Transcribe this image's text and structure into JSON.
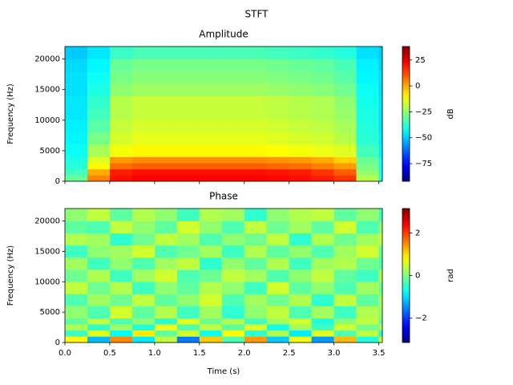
{
  "title": "STFT",
  "chart_data": [
    {
      "type": "heatmap",
      "title": "Amplitude",
      "ylabel": "Frequency (Hz)",
      "colorbar_label": "dB",
      "cmap": "jet",
      "xlim": [
        0,
        3.54
      ],
      "ylim": [
        0,
        22050
      ],
      "sharex": true,
      "yticks": [
        0,
        5000,
        10000,
        15000,
        20000
      ],
      "clim": [
        -92,
        38
      ],
      "cticks": [
        {
          "value": -75,
          "label": "−75"
        },
        {
          "value": -50,
          "label": "−50"
        },
        {
          "value": -25,
          "label": "−25"
        },
        0,
        25
      ],
      "time_bins": [
        0,
        0.25,
        0.5,
        0.75,
        1,
        1.25,
        1.5,
        1.75,
        2,
        2.25,
        2.5,
        2.75,
        3,
        3.25,
        3.5,
        3.54
      ],
      "freq_bins": [
        0,
        1000,
        2000,
        3000,
        4000,
        6000,
        8000,
        10000,
        12000,
        14000,
        16000,
        18000,
        20000,
        22050
      ],
      "z": [
        [
          -30,
          5,
          20,
          22,
          22,
          22,
          22,
          22,
          22,
          21,
          20,
          18,
          15,
          -20,
          -40
        ],
        [
          -35,
          0,
          18,
          20,
          20,
          20,
          20,
          20,
          20,
          19,
          18,
          15,
          10,
          -25,
          -40
        ],
        [
          -38,
          -10,
          8,
          10,
          10,
          10,
          10,
          10,
          10,
          9,
          8,
          6,
          2,
          -28,
          -42
        ],
        [
          -40,
          -15,
          2,
          4,
          4,
          4,
          4,
          4,
          4,
          3,
          2,
          0,
          -5,
          -30,
          -42
        ],
        [
          -42,
          -22,
          -12,
          -10,
          -10,
          -10,
          -10,
          -10,
          -10,
          -11,
          -12,
          -13,
          -15,
          -35,
          -45
        ],
        [
          -44,
          -28,
          -16,
          -14,
          -14,
          -14,
          -14,
          -14,
          -14,
          -15,
          -16,
          -17,
          -20,
          -38,
          -46
        ],
        [
          -45,
          -32,
          -18,
          -16,
          -16,
          -16,
          -16,
          -16,
          -16,
          -17,
          -18,
          -19,
          -22,
          -39,
          -47
        ],
        [
          -46,
          -35,
          -20,
          -18,
          -18,
          -18,
          -18,
          -18,
          -18,
          -19,
          -20,
          -21,
          -24,
          -40,
          -47
        ],
        [
          -46,
          -37,
          -20,
          -18,
          -18,
          -18,
          -18,
          -18,
          -18,
          -19,
          -20,
          -21,
          -25,
          -41,
          -47
        ],
        [
          -47,
          -40,
          -25,
          -23,
          -23,
          -23,
          -23,
          -23,
          -23,
          -24,
          -25,
          -26,
          -29,
          -42,
          -48
        ],
        [
          -47,
          -42,
          -28,
          -26,
          -26,
          -26,
          -26,
          -26,
          -26,
          -27,
          -28,
          -29,
          -32,
          -44,
          -48
        ],
        [
          -48,
          -44,
          -30,
          -28,
          -28,
          -28,
          -28,
          -28,
          -28,
          -29,
          -30,
          -31,
          -34,
          -45,
          -49
        ],
        [
          -50,
          -46,
          -36,
          -34,
          -34,
          -34,
          -34,
          -34,
          -34,
          -35,
          -36,
          -37,
          -39,
          -47,
          -50
        ]
      ]
    },
    {
      "type": "heatmap",
      "title": "Phase",
      "xlabel": "Time (s)",
      "ylabel": "Frequency (Hz)",
      "colorbar_label": "rad",
      "cmap": "jet",
      "xlim": [
        0,
        3.54
      ],
      "ylim": [
        0,
        22050
      ],
      "xticks": [
        {
          "value": 0,
          "label": "0.0"
        },
        {
          "value": 0.5,
          "label": "0.5"
        },
        {
          "value": 1,
          "label": "1.0"
        },
        {
          "value": 1.5,
          "label": "1.5"
        },
        {
          "value": 2,
          "label": "2.0"
        },
        {
          "value": 2.5,
          "label": "2.5"
        },
        {
          "value": 3,
          "label": "3.0"
        },
        {
          "value": 3.5,
          "label": "3.5"
        }
      ],
      "yticks": [
        0,
        5000,
        10000,
        15000,
        20000
      ],
      "clim": [
        -3.14,
        3.14
      ],
      "cticks": [
        {
          "value": -2,
          "label": "−2"
        },
        0,
        {
          "value": 2,
          "label": "2"
        }
      ],
      "time_bins": [
        0,
        0.25,
        0.5,
        0.75,
        1,
        1.25,
        1.5,
        1.75,
        2,
        2.25,
        2.5,
        2.75,
        3,
        3.25,
        3.5,
        3.54
      ],
      "freq_bins": [
        0,
        1000,
        2000,
        3000,
        4000,
        6000,
        8000,
        10000,
        12000,
        14000,
        16000,
        18000,
        20000,
        22050
      ],
      "z": [
        [
          0.8,
          -1.2,
          1.5,
          -0.9,
          0.4,
          -1.6,
          1.1,
          -0.3,
          1.4,
          -1.1,
          0.7,
          -1.4,
          1.2,
          -0.6,
          0.5
        ],
        [
          -0.4,
          0.6,
          -0.8,
          0.9,
          -0.2,
          0.5,
          -0.7,
          0.8,
          -0.5,
          0.3,
          -0.9,
          0.6,
          -0.3,
          0.4,
          -0.6
        ],
        [
          0.3,
          -0.5,
          0.2,
          -0.6,
          0.7,
          -0.3,
          0.4,
          -0.2,
          0.6,
          -0.7,
          0.2,
          -0.4,
          0.5,
          -0.1,
          0.3
        ],
        [
          -0.2,
          0.4,
          -0.3,
          0.1,
          -0.5,
          0.6,
          -0.1,
          0.3,
          -0.4,
          0.2,
          0.5,
          -0.6,
          0.1,
          0.4,
          -0.2
        ],
        [
          0.1,
          -0.3,
          0.5,
          -0.2,
          0.3,
          -0.4,
          0.2,
          -0.5,
          0.1,
          0.4,
          -0.3,
          0.2,
          -0.4,
          0.3,
          0.1
        ],
        [
          -0.3,
          0.2,
          -0.1,
          0.4,
          -0.2,
          0.1,
          0.5,
          -0.3,
          0.2,
          -0.1,
          0.3,
          -0.5,
          0.4,
          -0.2,
          0.2
        ],
        [
          0.4,
          -0.1,
          0.3,
          -0.4,
          0.1,
          -0.2,
          0.3,
          0.1,
          -0.4,
          0.5,
          -0.2,
          0.1,
          -0.3,
          0.2,
          -0.1
        ],
        [
          -0.1,
          0.3,
          -0.4,
          0.2,
          0.5,
          -0.3,
          -0.1,
          0.4,
          0.2,
          -0.3,
          0.1,
          0.4,
          -0.2,
          -0.4,
          0.3
        ],
        [
          0.2,
          -0.4,
          0.1,
          -0.3,
          0.2,
          0.4,
          -0.5,
          0.1,
          -0.2,
          0.3,
          -0.4,
          0.2,
          0.3,
          -0.1,
          -0.3
        ],
        [
          -0.4,
          0.1,
          0.2,
          0.5,
          -0.3,
          -0.1,
          0.2,
          -0.4,
          0.3,
          -0.2,
          0.1,
          -0.3,
          0.2,
          0.5,
          -0.2
        ],
        [
          0.3,
          0.2,
          -0.5,
          -0.1,
          0.4,
          0.2,
          -0.3,
          0.1,
          -0.1,
          0.4,
          -0.5,
          0.3,
          -0.1,
          0.2,
          0.4
        ],
        [
          -0.2,
          -0.3,
          0.4,
          0.1,
          -0.2,
          0.5,
          0.1,
          -0.3,
          0.4,
          -0.1,
          0.2,
          -0.2,
          0.5,
          -0.3,
          0.1
        ],
        [
          0.1,
          0.4,
          -0.2,
          0.3,
          0.1,
          -0.4,
          0.3,
          0.2,
          -0.5,
          0.1,
          0.3,
          0.4,
          -0.2,
          0.1,
          -0.4
        ]
      ]
    }
  ]
}
